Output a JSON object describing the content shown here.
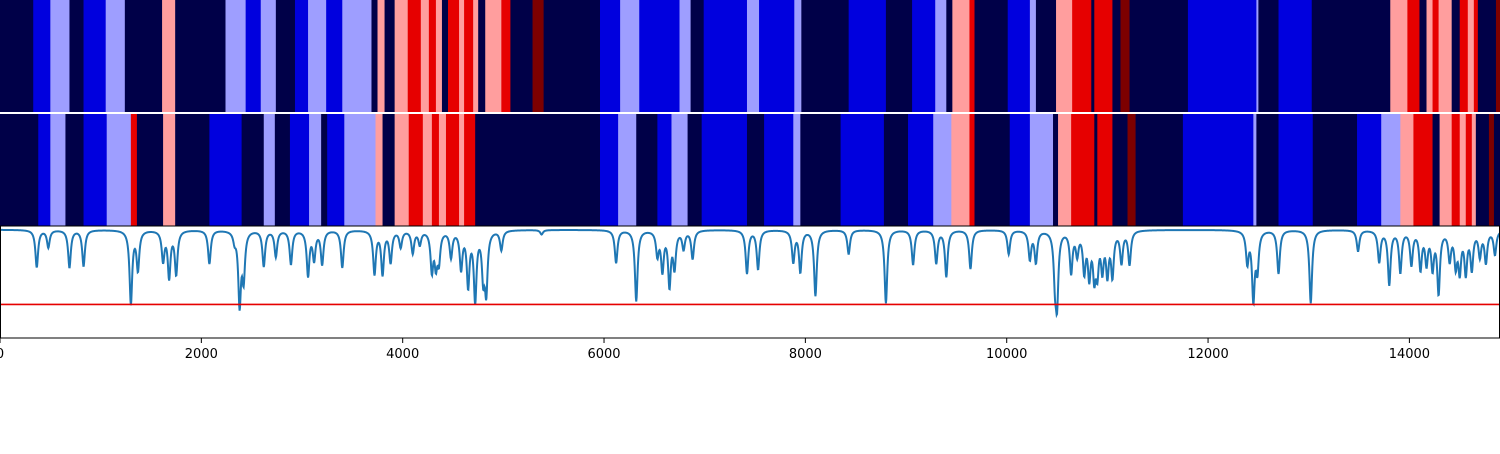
{
  "chart_data": {
    "type": "heatmap",
    "title": "",
    "xlabel": "",
    "ylabel": "",
    "xlim": [
      0,
      14900
    ],
    "x_ticks": [
      {
        "value": 0,
        "label": "0"
      },
      {
        "value": 2000,
        "label": "2000"
      },
      {
        "value": 4000,
        "label": "4000"
      },
      {
        "value": 6000,
        "label": "6000"
      },
      {
        "value": 8000,
        "label": "8000"
      },
      {
        "value": 10000,
        "label": "10000"
      },
      {
        "value": 12000,
        "label": "12000"
      },
      {
        "value": 14000,
        "label": "14000"
      }
    ],
    "palette": {
      "-3": "#000048",
      "-2": "#0000de",
      "-1": "#9e9eff",
      "1": "#ff9e9e",
      "2": "#e60000",
      "3": "#7d0000"
    },
    "state_tracks": [
      {
        "segments": [
          [
            0,
            330,
            -3
          ],
          [
            330,
            500,
            -2
          ],
          [
            500,
            690,
            -1
          ],
          [
            690,
            830,
            -3
          ],
          [
            830,
            1050,
            -2
          ],
          [
            1050,
            1240,
            -1
          ],
          [
            1240,
            1610,
            -3
          ],
          [
            1610,
            1740,
            1
          ],
          [
            1740,
            2240,
            -3
          ],
          [
            2240,
            2440,
            -1
          ],
          [
            2440,
            2590,
            -2
          ],
          [
            2590,
            2740,
            -1
          ],
          [
            2740,
            2930,
            -3
          ],
          [
            2930,
            3060,
            -2
          ],
          [
            3060,
            3240,
            -1
          ],
          [
            3240,
            3400,
            -2
          ],
          [
            3400,
            3690,
            -1
          ],
          [
            3690,
            3750,
            -3
          ],
          [
            3750,
            3820,
            1
          ],
          [
            3820,
            3920,
            -3
          ],
          [
            3920,
            4050,
            1
          ],
          [
            4050,
            4180,
            2
          ],
          [
            4180,
            4260,
            1
          ],
          [
            4260,
            4330,
            2
          ],
          [
            4330,
            4390,
            1
          ],
          [
            4390,
            4450,
            -3
          ],
          [
            4450,
            4560,
            2
          ],
          [
            4560,
            4610,
            1
          ],
          [
            4610,
            4700,
            2
          ],
          [
            4700,
            4750,
            1
          ],
          [
            4750,
            4820,
            -3
          ],
          [
            4820,
            4980,
            1
          ],
          [
            4980,
            5070,
            2
          ],
          [
            5070,
            5290,
            -3
          ],
          [
            5290,
            5400,
            3
          ],
          [
            5400,
            5960,
            -3
          ],
          [
            5960,
            6160,
            -2
          ],
          [
            6160,
            6350,
            -1
          ],
          [
            6350,
            6750,
            -2
          ],
          [
            6750,
            6860,
            -1
          ],
          [
            6860,
            6990,
            -3
          ],
          [
            6990,
            7420,
            -2
          ],
          [
            7420,
            7540,
            -1
          ],
          [
            7540,
            7890,
            -2
          ],
          [
            7890,
            7960,
            -1
          ],
          [
            7960,
            8430,
            -3
          ],
          [
            8430,
            8800,
            -2
          ],
          [
            8800,
            9060,
            -3
          ],
          [
            9060,
            9290,
            -2
          ],
          [
            9290,
            9400,
            -1
          ],
          [
            9400,
            9460,
            -3
          ],
          [
            9460,
            9630,
            1
          ],
          [
            9630,
            9680,
            2
          ],
          [
            9680,
            10010,
            -3
          ],
          [
            10010,
            10230,
            -2
          ],
          [
            10230,
            10290,
            -1
          ],
          [
            10290,
            10490,
            -3
          ],
          [
            10490,
            10650,
            1
          ],
          [
            10650,
            10840,
            2
          ],
          [
            10840,
            10870,
            -3
          ],
          [
            10870,
            11050,
            2
          ],
          [
            11050,
            11130,
            -3
          ],
          [
            11130,
            11220,
            3
          ],
          [
            11220,
            11800,
            -3
          ],
          [
            11800,
            12480,
            -2
          ],
          [
            12480,
            12500,
            -1
          ],
          [
            12500,
            12700,
            -3
          ],
          [
            12700,
            13030,
            -2
          ],
          [
            13030,
            13810,
            -3
          ],
          [
            13810,
            13980,
            1
          ],
          [
            13980,
            14100,
            2
          ],
          [
            14100,
            14170,
            -3
          ],
          [
            14170,
            14230,
            1
          ],
          [
            14230,
            14290,
            2
          ],
          [
            14290,
            14420,
            1
          ],
          [
            14420,
            14500,
            -3
          ],
          [
            14500,
            14580,
            2
          ],
          [
            14580,
            14640,
            1
          ],
          [
            14640,
            14680,
            2
          ],
          [
            14680,
            14860,
            -3
          ],
          [
            14860,
            14900,
            3
          ]
        ]
      },
      {
        "segments": [
          [
            0,
            380,
            -3
          ],
          [
            380,
            500,
            -2
          ],
          [
            500,
            650,
            -1
          ],
          [
            650,
            830,
            -3
          ],
          [
            830,
            1060,
            -2
          ],
          [
            1060,
            1300,
            -1
          ],
          [
            1300,
            1360,
            2
          ],
          [
            1360,
            1620,
            -3
          ],
          [
            1620,
            1740,
            1
          ],
          [
            1740,
            2080,
            -3
          ],
          [
            2080,
            2400,
            -2
          ],
          [
            2400,
            2620,
            -3
          ],
          [
            2620,
            2730,
            -1
          ],
          [
            2730,
            2880,
            -3
          ],
          [
            2880,
            3070,
            -2
          ],
          [
            3070,
            3190,
            -1
          ],
          [
            3190,
            3250,
            -3
          ],
          [
            3250,
            3420,
            -2
          ],
          [
            3420,
            3730,
            -1
          ],
          [
            3730,
            3800,
            1
          ],
          [
            3800,
            3920,
            -3
          ],
          [
            3920,
            4060,
            1
          ],
          [
            4060,
            4200,
            2
          ],
          [
            4200,
            4290,
            1
          ],
          [
            4290,
            4360,
            2
          ],
          [
            4360,
            4430,
            1
          ],
          [
            4430,
            4560,
            2
          ],
          [
            4560,
            4610,
            1
          ],
          [
            4610,
            4720,
            2
          ],
          [
            4720,
            5960,
            -3
          ],
          [
            5960,
            6140,
            -2
          ],
          [
            6140,
            6320,
            -1
          ],
          [
            6320,
            6530,
            -3
          ],
          [
            6530,
            6670,
            -2
          ],
          [
            6670,
            6830,
            -1
          ],
          [
            6830,
            6970,
            -3
          ],
          [
            6970,
            7420,
            -2
          ],
          [
            7420,
            7590,
            -3
          ],
          [
            7590,
            7880,
            -2
          ],
          [
            7880,
            7950,
            -1
          ],
          [
            7950,
            8350,
            -3
          ],
          [
            8350,
            8780,
            -2
          ],
          [
            8780,
            9020,
            -3
          ],
          [
            9020,
            9270,
            -2
          ],
          [
            9270,
            9450,
            -1
          ],
          [
            9450,
            9630,
            1
          ],
          [
            9630,
            9680,
            2
          ],
          [
            9680,
            10030,
            -3
          ],
          [
            10030,
            10230,
            -2
          ],
          [
            10230,
            10460,
            -1
          ],
          [
            10460,
            10510,
            -3
          ],
          [
            10510,
            10640,
            1
          ],
          [
            10640,
            10870,
            2
          ],
          [
            10870,
            10900,
            -3
          ],
          [
            10900,
            11050,
            2
          ],
          [
            11050,
            11200,
            -3
          ],
          [
            11200,
            11280,
            3
          ],
          [
            11280,
            11750,
            -3
          ],
          [
            11750,
            12450,
            -2
          ],
          [
            12450,
            12480,
            -1
          ],
          [
            12480,
            12700,
            -3
          ],
          [
            12700,
            13040,
            -2
          ],
          [
            13040,
            13480,
            -3
          ],
          [
            13480,
            13720,
            -2
          ],
          [
            13720,
            13910,
            -1
          ],
          [
            13910,
            14040,
            1
          ],
          [
            14040,
            14230,
            2
          ],
          [
            14230,
            14300,
            -3
          ],
          [
            14300,
            14420,
            1
          ],
          [
            14420,
            14500,
            2
          ],
          [
            14500,
            14560,
            1
          ],
          [
            14560,
            14620,
            2
          ],
          [
            14620,
            14660,
            1
          ],
          [
            14660,
            14790,
            -3
          ],
          [
            14790,
            14840,
            3
          ],
          [
            14840,
            14900,
            -3
          ]
        ]
      }
    ],
    "line_series": {
      "baseline": 1.0,
      "dips": [
        [
          365,
          0.5
        ],
        [
          480,
          0.23
        ],
        [
          690,
          0.5
        ],
        [
          830,
          0.48
        ],
        [
          1300,
          0.98
        ],
        [
          1370,
          0.52
        ],
        [
          1620,
          0.4
        ],
        [
          1680,
          0.62
        ],
        [
          1750,
          0.58
        ],
        [
          2080,
          0.45
        ],
        [
          2330,
          0.12
        ],
        [
          2380,
          0.98
        ],
        [
          2420,
          0.62
        ],
        [
          2620,
          0.48
        ],
        [
          2740,
          0.35
        ],
        [
          2890,
          0.45
        ],
        [
          3060,
          0.6
        ],
        [
          3120,
          0.38
        ],
        [
          3200,
          0.45
        ],
        [
          3400,
          0.5
        ],
        [
          3720,
          0.58
        ],
        [
          3800,
          0.58
        ],
        [
          3880,
          0.42
        ],
        [
          3980,
          0.22
        ],
        [
          4100,
          0.3
        ],
        [
          4170,
          0.18
        ],
        [
          4290,
          0.52
        ],
        [
          4330,
          0.42
        ],
        [
          4360,
          0.38
        ],
        [
          4480,
          0.35
        ],
        [
          4580,
          0.5
        ],
        [
          4650,
          0.72
        ],
        [
          4720,
          0.92
        ],
        [
          4800,
          0.58
        ],
        [
          4830,
          0.78
        ],
        [
          4980,
          0.26
        ],
        [
          5380,
          0.06
        ],
        [
          6120,
          0.44
        ],
        [
          6320,
          0.95
        ],
        [
          6530,
          0.32
        ],
        [
          6580,
          0.52
        ],
        [
          6650,
          0.72
        ],
        [
          6700,
          0.48
        ],
        [
          6790,
          0.24
        ],
        [
          6880,
          0.38
        ],
        [
          7420,
          0.58
        ],
        [
          7530,
          0.52
        ],
        [
          7880,
          0.42
        ],
        [
          7950,
          0.55
        ],
        [
          8100,
          0.88
        ],
        [
          8430,
          0.32
        ],
        [
          8800,
          0.98
        ],
        [
          9070,
          0.46
        ],
        [
          9300,
          0.44
        ],
        [
          9400,
          0.62
        ],
        [
          9640,
          0.52
        ],
        [
          10020,
          0.32
        ],
        [
          10230,
          0.38
        ],
        [
          10290,
          0.42
        ],
        [
          10480,
          0.58
        ],
        [
          10500,
          0.88
        ],
        [
          10640,
          0.55
        ],
        [
          10700,
          0.3
        ],
        [
          10770,
          0.52
        ],
        [
          10820,
          0.58
        ],
        [
          10870,
          0.56
        ],
        [
          10900,
          0.5
        ],
        [
          10950,
          0.48
        ],
        [
          11000,
          0.55
        ],
        [
          11050,
          0.58
        ],
        [
          11140,
          0.42
        ],
        [
          11220,
          0.45
        ],
        [
          12390,
          0.42
        ],
        [
          12450,
          0.9
        ],
        [
          12490,
          0.5
        ],
        [
          12700,
          0.58
        ],
        [
          13020,
          0.98
        ],
        [
          13490,
          0.28
        ],
        [
          13700,
          0.42
        ],
        [
          13800,
          0.72
        ],
        [
          13910,
          0.55
        ],
        [
          14020,
          0.45
        ],
        [
          14110,
          0.5
        ],
        [
          14170,
          0.42
        ],
        [
          14230,
          0.48
        ],
        [
          14290,
          0.82
        ],
        [
          14400,
          0.38
        ],
        [
          14460,
          0.44
        ],
        [
          14500,
          0.52
        ],
        [
          14560,
          0.55
        ],
        [
          14620,
          0.5
        ],
        [
          14700,
          0.33
        ],
        [
          14760,
          0.42
        ],
        [
          14850,
          0.32
        ]
      ],
      "color": "#1f77b4"
    },
    "threshold": {
      "value": 0.0,
      "color": "#e60000"
    },
    "y_range": [
      -0.45,
      1.05
    ]
  }
}
